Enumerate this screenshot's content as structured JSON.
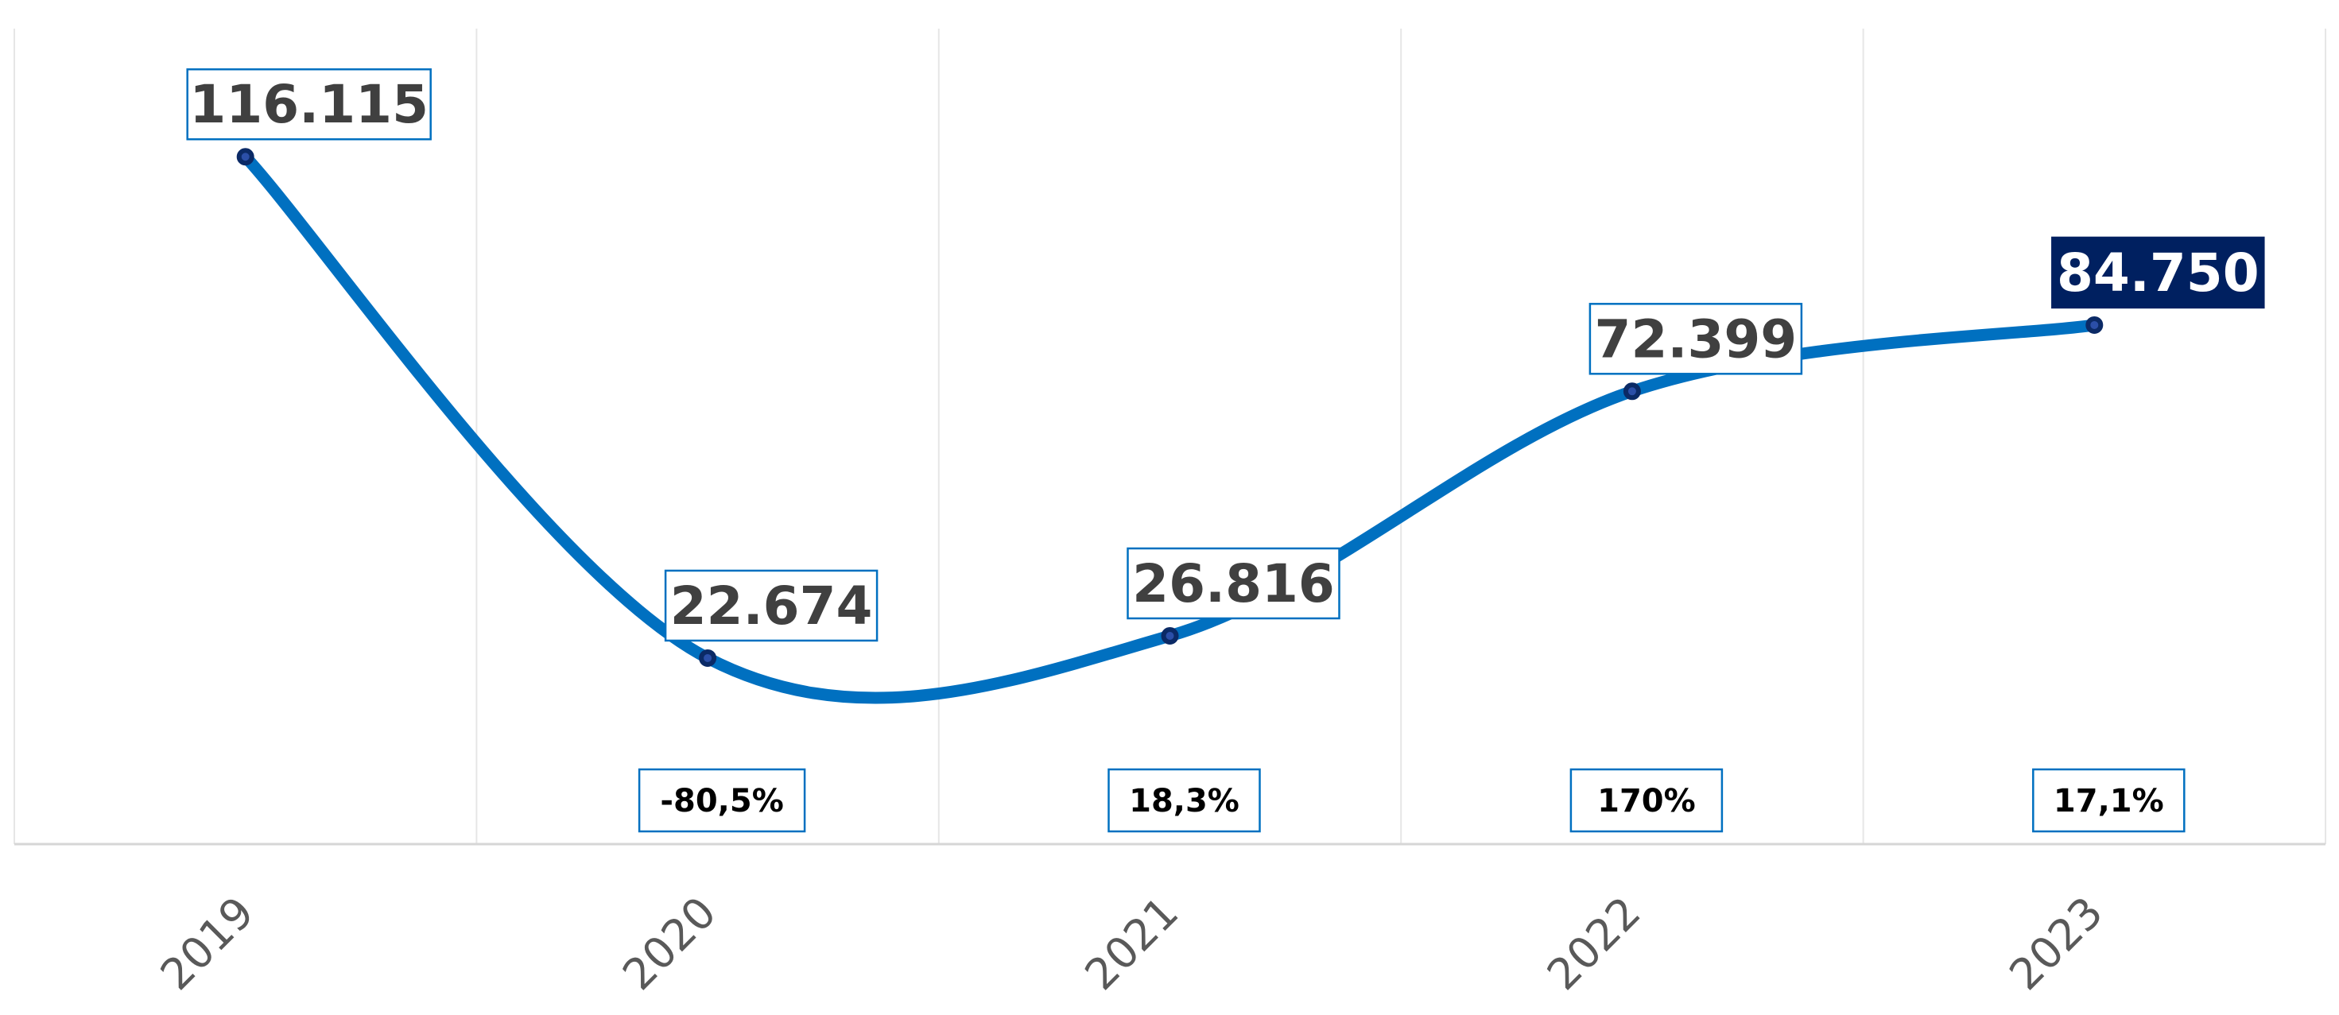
{
  "chart_data": {
    "type": "line",
    "title": "",
    "xlabel": "",
    "ylabel": "",
    "categories": [
      "2019",
      "2020",
      "2021",
      "2022",
      "2023"
    ],
    "series": [
      {
        "values": [
          116115,
          22674,
          26816,
          72399,
          84750
        ],
        "labels": [
          "116.115",
          "22.674",
          "26.816",
          "72.399",
          "84.750"
        ],
        "color": "#0070c0",
        "smooth": true
      }
    ],
    "changes": [
      {
        "category": "2020",
        "label": "-80,5%"
      },
      {
        "category": "2021",
        "label": "18,3%"
      },
      {
        "category": "2022",
        "label": "170%"
      },
      {
        "category": "2023",
        "label": "17,1%"
      }
    ],
    "highlight_index": 4,
    "highlight_color": "#002060",
    "ylim": [
      -12000,
      140000
    ],
    "grid": "vertical",
    "legend": "none"
  }
}
